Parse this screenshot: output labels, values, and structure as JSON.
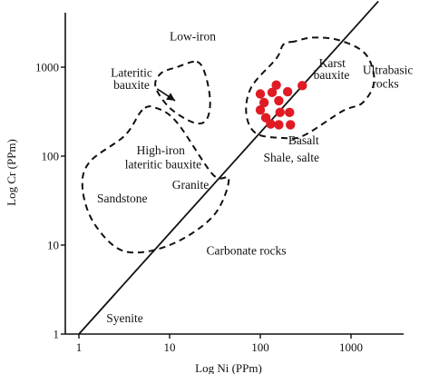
{
  "chart_data": {
    "type": "scatter",
    "x_axis": {
      "label": "Log Ni (PPm)",
      "scale": "log",
      "range": [
        1,
        3000
      ],
      "ticks": [
        1,
        10,
        100,
        1000
      ],
      "tick_labels": [
        "1",
        "10",
        "100",
        "1000"
      ]
    },
    "y_axis": {
      "label": "Log Cr (PPm)",
      "scale": "log",
      "range": [
        1,
        4000
      ],
      "ticks": [
        1,
        10,
        100,
        1000
      ],
      "tick_labels": [
        "1",
        "10",
        "100",
        "1000"
      ]
    },
    "grid": false,
    "reference_line": {
      "from": [
        1,
        1
      ],
      "to": [
        2000,
        5500
      ]
    },
    "points": [
      {
        "x": 100,
        "y": 500
      },
      {
        "x": 110,
        "y": 400
      },
      {
        "x": 100,
        "y": 330
      },
      {
        "x": 115,
        "y": 270
      },
      {
        "x": 130,
        "y": 230
      },
      {
        "x": 135,
        "y": 520
      },
      {
        "x": 150,
        "y": 630
      },
      {
        "x": 160,
        "y": 420
      },
      {
        "x": 165,
        "y": 310
      },
      {
        "x": 160,
        "y": 225
      },
      {
        "x": 200,
        "y": 530
      },
      {
        "x": 210,
        "y": 310
      },
      {
        "x": 215,
        "y": 225
      },
      {
        "x": 290,
        "y": 620
      }
    ],
    "point_color": "#e01b24",
    "regions": [
      {
        "name": "Lateritic bauxite (low-iron)",
        "outline": [
          [
            20,
            1150
          ],
          [
            25,
            800
          ],
          [
            28,
            400
          ],
          [
            25,
            250
          ],
          [
            18,
            240
          ],
          [
            10,
            350
          ],
          [
            7,
            600
          ],
          [
            8,
            850
          ],
          [
            12,
            1000
          ]
        ]
      },
      {
        "name": "High-iron lateritic bauxite",
        "outline": [
          [
            5,
            330
          ],
          [
            3.2,
            170
          ],
          [
            1.3,
            85
          ],
          [
            1.1,
            42
          ],
          [
            1.5,
            17
          ],
          [
            3.2,
            8.5
          ],
          [
            10,
            10
          ],
          [
            30,
            21
          ],
          [
            45,
            55
          ],
          [
            30,
            62
          ],
          [
            12,
            240
          ],
          [
            7,
            350
          ]
        ]
      },
      {
        "name": "Karst bauxite",
        "outline": [
          [
            240,
            1950
          ],
          [
            180,
            1800
          ],
          [
            150,
            1250
          ],
          [
            80,
            600
          ],
          [
            70,
            300
          ],
          [
            90,
            180
          ],
          [
            180,
            160
          ],
          [
            300,
            170
          ],
          [
            800,
            320
          ],
          [
            1350,
            400
          ],
          [
            1800,
            700
          ],
          [
            1450,
            1400
          ],
          [
            750,
            2000
          ],
          [
            380,
            2150
          ]
        ]
      }
    ],
    "annotations": [
      {
        "text": "Low-iron",
        "x": 18,
        "y": 2000
      },
      {
        "text": "Lateritic",
        "x": 3.8,
        "y": 780
      },
      {
        "text": "bauxite",
        "x": 3.8,
        "y": 570
      },
      {
        "text": "Karst",
        "x": 620,
        "y": 1000
      },
      {
        "text": "bauxite",
        "x": 610,
        "y": 735
      },
      {
        "text": "Ultrabasic",
        "x": 2550,
        "y": 840
      },
      {
        "text": "rocks",
        "x": 2400,
        "y": 590
      },
      {
        "text": "High-iron",
        "x": 8,
        "y": 105
      },
      {
        "text": "lateritic bauxite",
        "x": 8.5,
        "y": 73
      },
      {
        "text": "Basalt",
        "x": 300,
        "y": 135
      },
      {
        "text": "Shale, salte",
        "x": 220,
        "y": 87
      },
      {
        "text": "Granite",
        "x": 17,
        "y": 43
      },
      {
        "text": "Sandstone",
        "x": 3,
        "y": 30
      },
      {
        "text": "Carbonate rocks",
        "x": 70,
        "y": 7.8
      },
      {
        "text": "Syenite",
        "x": 3.2,
        "y": 1.35
      }
    ],
    "arrow": {
      "from": [
        7.3,
        570
      ],
      "to": [
        11.5,
        420
      ]
    }
  }
}
